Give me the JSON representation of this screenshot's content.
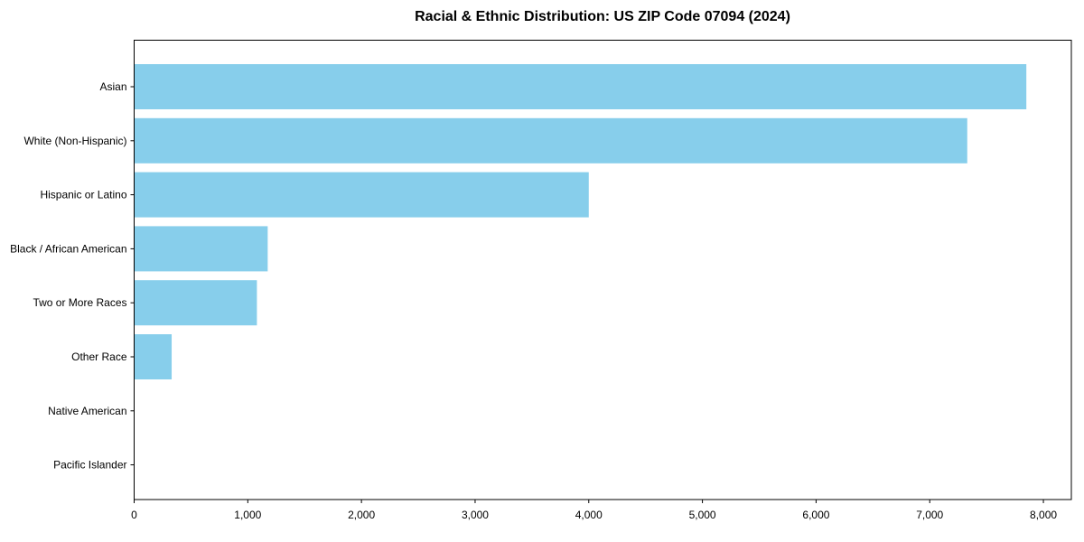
{
  "chart_data": {
    "type": "bar",
    "orientation": "horizontal",
    "title": "Racial & Ethnic Distribution: US ZIP Code 07094 (2024)",
    "categories": [
      "Asian",
      "White (Non-Hispanic)",
      "Hispanic or Latino",
      "Black / African American",
      "Two or More Races",
      "Other Race",
      "Native American",
      "Pacific Islander"
    ],
    "values": [
      7850,
      7330,
      4000,
      1175,
      1080,
      330,
      0,
      0
    ],
    "xlabel": "",
    "ylabel": "",
    "xlim": [
      0,
      8246
    ],
    "x_ticks": [
      0,
      1000,
      2000,
      3000,
      4000,
      5000,
      6000,
      7000,
      8000
    ],
    "grid": false,
    "legend": false,
    "bar_color": "#87CEEB",
    "axis_color": "#000000",
    "text_color": "#000000",
    "background": "#FFFFFF"
  }
}
